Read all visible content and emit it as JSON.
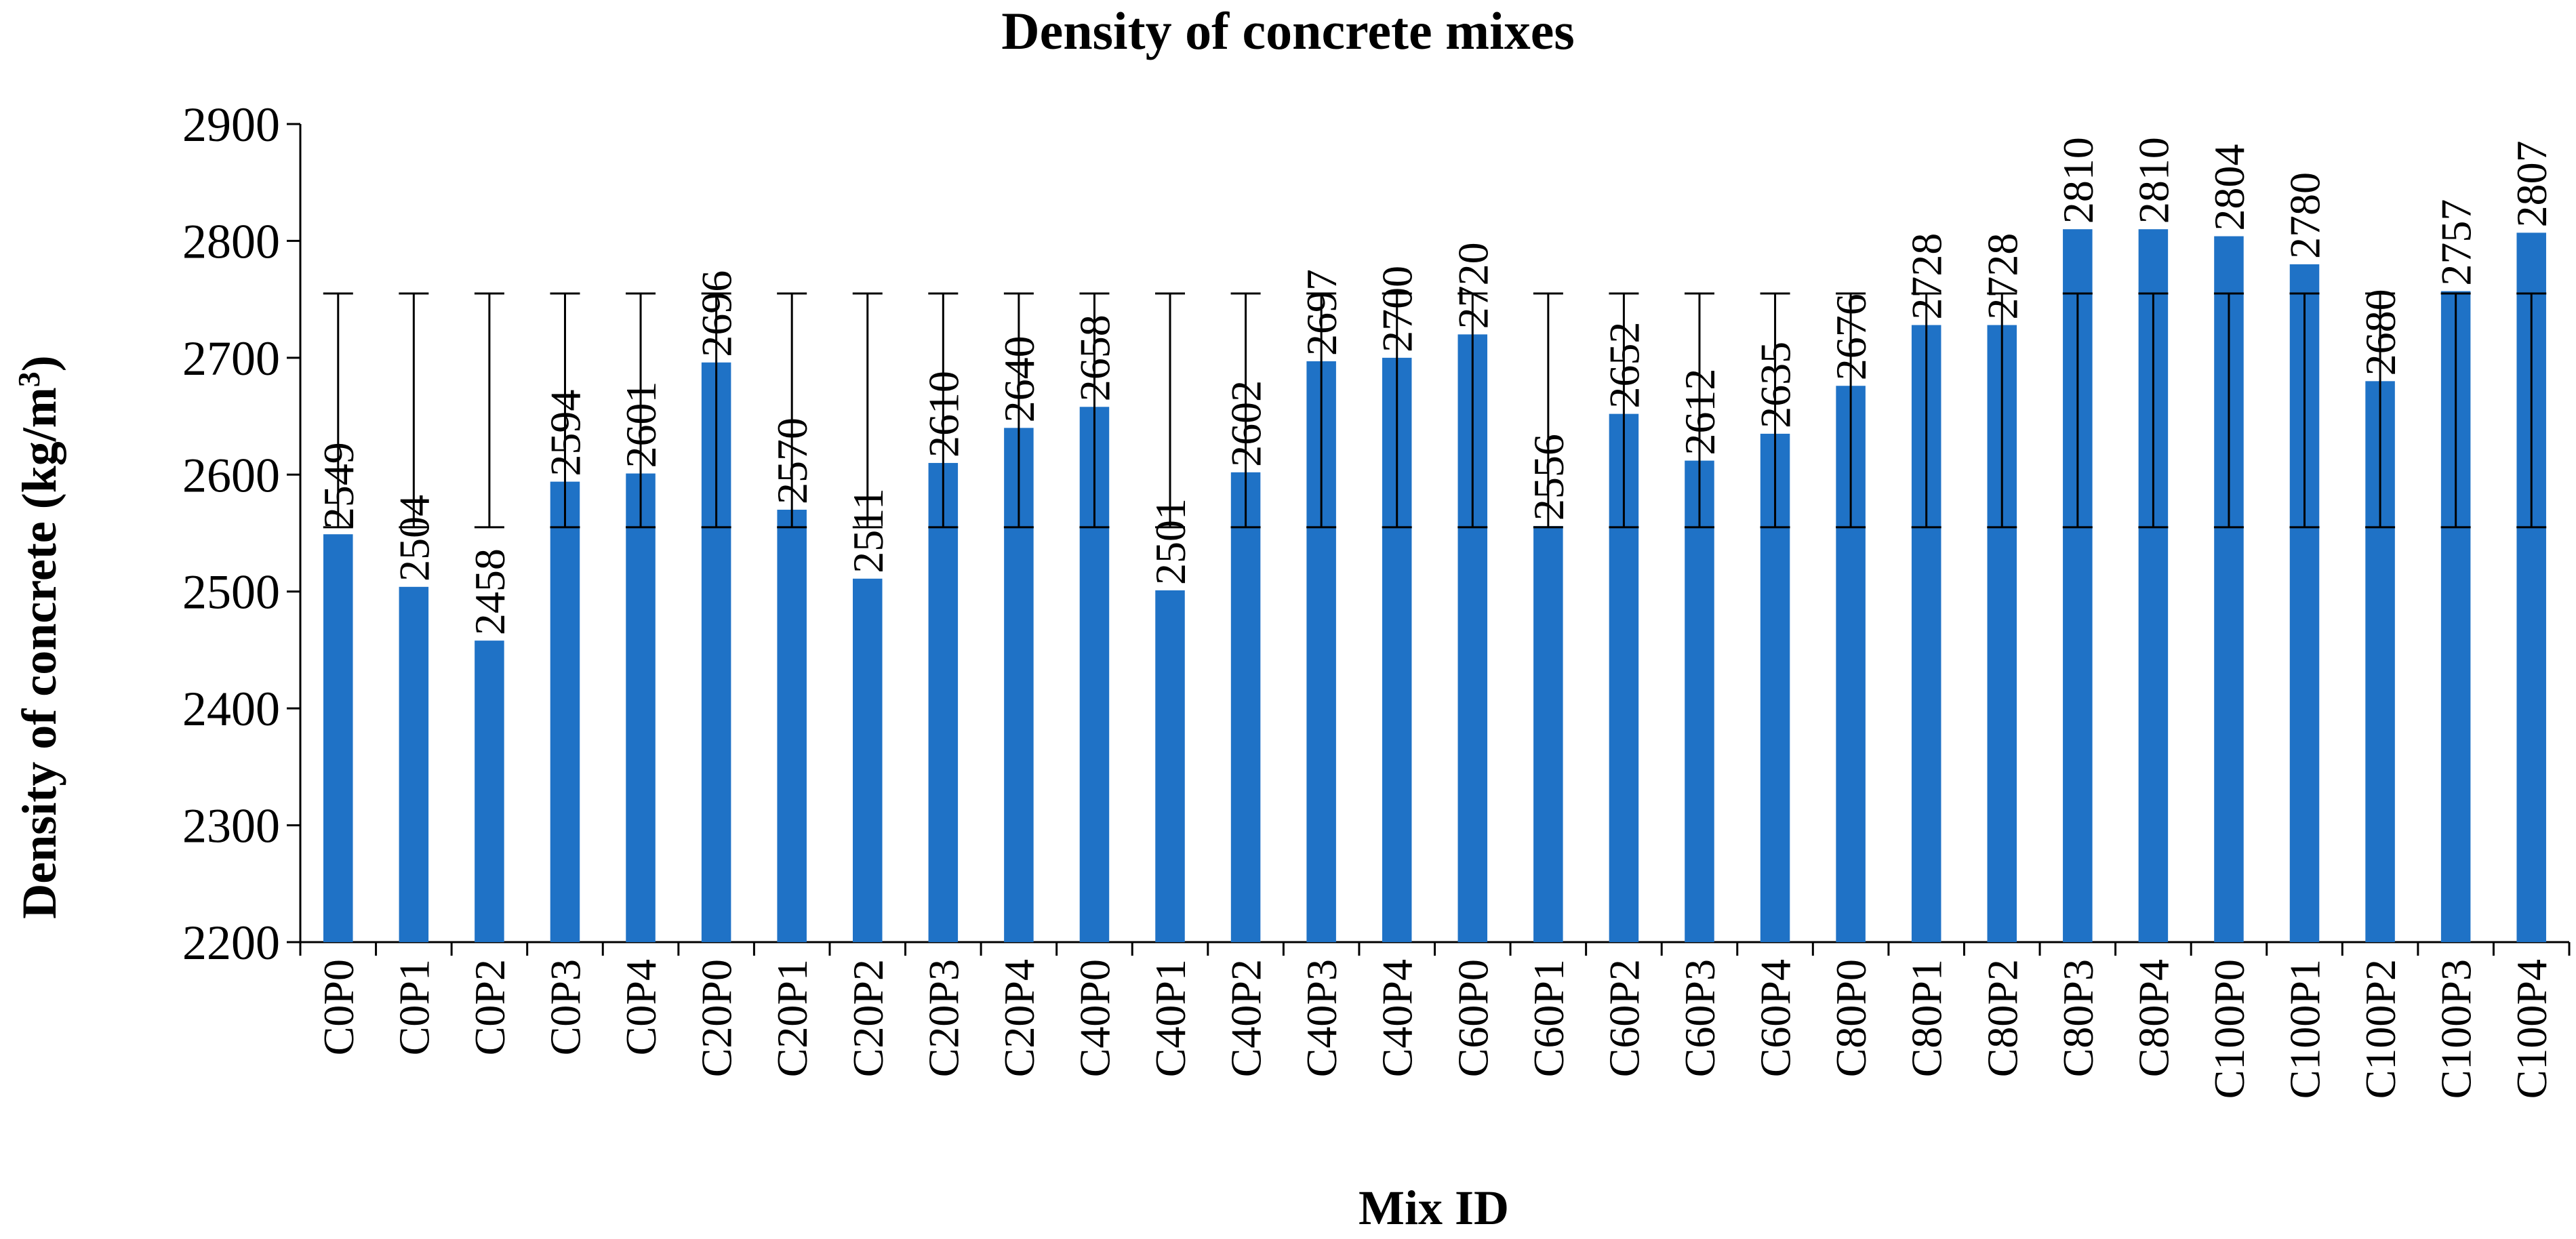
{
  "chart_data": {
    "type": "bar",
    "title": "Density of concrete mixes",
    "xlabel": "Mix ID",
    "ylabel_main": "Density of concrete (kg/m",
    "ylabel_sup": "3",
    "ylabel_end": ")",
    "ylim": [
      2200,
      2900
    ],
    "ytick_step": 100,
    "yticks": [
      "2200",
      "2300",
      "2400",
      "2500",
      "2600",
      "2700",
      "2800",
      "2900"
    ],
    "error_bar_range": [
      2555,
      2755
    ],
    "bar_color": "#1f72c6",
    "grid": false,
    "legend": "none",
    "categories": [
      "C0P0",
      "C0P1",
      "C0P2",
      "C0P3",
      "C0P4",
      "C20P0",
      "C20P1",
      "C20P2",
      "C20P3",
      "C20P4",
      "C40P0",
      "C40P1",
      "C40P2",
      "C40P3",
      "C40P4",
      "C60P0",
      "C60P1",
      "C60P2",
      "C60P3",
      "C60P4",
      "C80P0",
      "C80P1",
      "C80P2",
      "C80P3",
      "C80P4",
      "C100P0",
      "C100P1",
      "C100P2",
      "C100P3",
      "C100P4"
    ],
    "values": [
      2549,
      2504,
      2458,
      2594,
      2601,
      2696,
      2570,
      2511,
      2610,
      2640,
      2658,
      2501,
      2602,
      2697,
      2700,
      2720,
      2556,
      2652,
      2612,
      2635,
      2676,
      2728,
      2728,
      2810,
      2810,
      2804,
      2780,
      2680,
      2757,
      2807
    ],
    "data_labels": [
      "2549",
      "2504",
      "2458",
      "2594",
      "2601",
      "2696",
      "2570",
      "2511",
      "2610",
      "2640",
      "2658",
      "2501",
      "2602",
      "2697",
      "2700",
      "2720",
      "2556",
      "2652",
      "2612",
      "2635",
      "2676",
      "2728",
      "2728",
      "2810",
      "2810",
      "2804",
      "2780",
      "2680",
      "2757",
      "2807"
    ]
  }
}
